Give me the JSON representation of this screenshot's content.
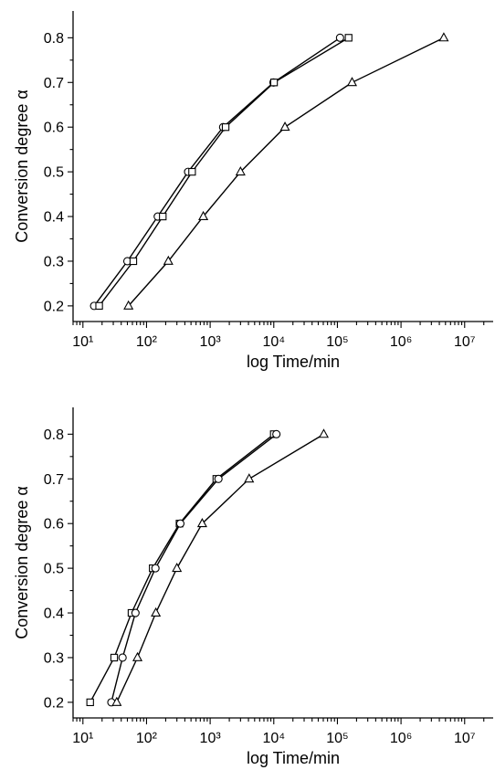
{
  "chart_data": [
    {
      "type": "scatter",
      "title": "",
      "xlabel": "log Time/min",
      "ylabel": "Conversion degree α",
      "xscale": "log",
      "xlim": [
        7,
        30000000
      ],
      "ylim": [
        0.165,
        0.86
      ],
      "xticks": [
        "10^1",
        "10^2",
        "10^3",
        "10^4",
        "10^5",
        "10^6",
        "10^7"
      ],
      "yticks": [
        0.2,
        0.3,
        0.4,
        0.5,
        0.6,
        0.7,
        0.8
      ],
      "series": [
        {
          "marker": "circle",
          "x": [
            15,
            50,
            150,
            450,
            1600,
            9900,
            110000
          ],
          "y": [
            0.2,
            0.3,
            0.4,
            0.5,
            0.6,
            0.7,
            0.8
          ]
        },
        {
          "marker": "square",
          "x": [
            18,
            62,
            180,
            520,
            1750,
            10100,
            150000
          ],
          "y": [
            0.2,
            0.3,
            0.4,
            0.5,
            0.6,
            0.7,
            0.8
          ]
        },
        {
          "marker": "triangle",
          "x": [
            52,
            220,
            780,
            3000,
            15000,
            170000,
            4700000
          ],
          "y": [
            0.2,
            0.3,
            0.4,
            0.5,
            0.6,
            0.7,
            0.8
          ]
        }
      ]
    },
    {
      "type": "scatter",
      "title": "",
      "xlabel": "log Time/min",
      "ylabel": "Conversion degree α",
      "xscale": "log",
      "xlim": [
        7,
        30000000
      ],
      "ylim": [
        0.165,
        0.86
      ],
      "xticks": [
        "10^1",
        "10^2",
        "10^3",
        "10^4",
        "10^5",
        "10^6",
        "10^7"
      ],
      "yticks": [
        0.2,
        0.3,
        0.4,
        0.5,
        0.6,
        0.7,
        0.8
      ],
      "series": [
        {
          "marker": "square",
          "x": [
            13,
            31,
            58,
            125,
            330,
            1250,
            10000
          ],
          "y": [
            0.2,
            0.3,
            0.4,
            0.5,
            0.6,
            0.7,
            0.8
          ]
        },
        {
          "marker": "circle",
          "x": [
            28,
            42,
            67,
            138,
            340,
            1350,
            11000
          ],
          "y": [
            0.2,
            0.3,
            0.4,
            0.5,
            0.6,
            0.7,
            0.8
          ]
        },
        {
          "marker": "triangle",
          "x": [
            34,
            72,
            140,
            300,
            750,
            4100,
            61000
          ],
          "y": [
            0.2,
            0.3,
            0.4,
            0.5,
            0.6,
            0.7,
            0.8
          ]
        }
      ]
    }
  ]
}
